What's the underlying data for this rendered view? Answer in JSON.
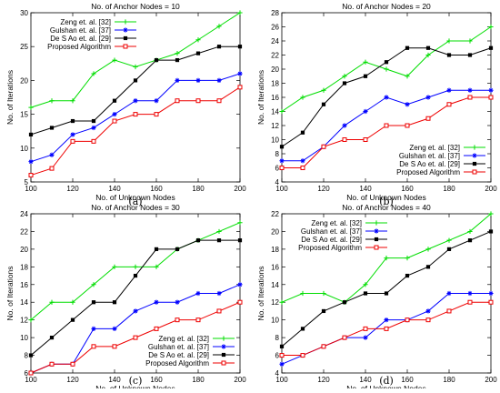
{
  "chart_data": [
    {
      "type": "line",
      "panel": "(a)",
      "title": "No. of Anchor Nodes = 10",
      "xlabel": "No. of Unknown Nodes",
      "ylabel": "No. of Iterations",
      "x": [
        100,
        110,
        120,
        130,
        140,
        150,
        160,
        170,
        180,
        190,
        200
      ],
      "xlim": [
        100,
        200
      ],
      "ylim": [
        5,
        30
      ],
      "xticks": [
        100,
        120,
        140,
        160,
        180,
        200
      ],
      "yticks": [
        5,
        10,
        15,
        20,
        25,
        30
      ],
      "legend": "top-left",
      "grid": false,
      "series": [
        {
          "name": "Zeng et. al. [32]",
          "color": "#00dd00",
          "marker": "plus",
          "values": [
            16,
            17,
            17,
            21,
            23,
            22,
            23,
            24,
            26,
            28,
            30
          ]
        },
        {
          "name": "Gulshan et. al. [37]",
          "color": "#0000ff",
          "marker": "star",
          "values": [
            8,
            9,
            12,
            13,
            15,
            17,
            17,
            20,
            20,
            20,
            21
          ]
        },
        {
          "name": "De S Ao et. al. [29]",
          "color": "#000000",
          "marker": "square-filled",
          "values": [
            12,
            13,
            14,
            14,
            17,
            20,
            23,
            23,
            24,
            25,
            25
          ]
        },
        {
          "name": "Proposed Algorithm",
          "color": "#ee0000",
          "marker": "square-open",
          "values": [
            6,
            7,
            11,
            11,
            14,
            15,
            15,
            17,
            17,
            17,
            19
          ]
        }
      ]
    },
    {
      "type": "line",
      "panel": "(b)",
      "title": "No. of Anchor Nodes = 20",
      "xlabel": "No. of Unknown Nodes",
      "ylabel": "No. of Iterations",
      "x": [
        100,
        110,
        120,
        130,
        140,
        150,
        160,
        170,
        180,
        190,
        200
      ],
      "xlim": [
        100,
        200
      ],
      "ylim": [
        4,
        28
      ],
      "xticks": [
        100,
        120,
        140,
        160,
        180,
        200
      ],
      "yticks": [
        4,
        6,
        8,
        10,
        12,
        14,
        16,
        18,
        20,
        22,
        24,
        26,
        28
      ],
      "legend": "bottom-right",
      "grid": false,
      "series": [
        {
          "name": "Zeng et. al. [32]",
          "color": "#00dd00",
          "marker": "plus",
          "values": [
            14,
            16,
            17,
            19,
            21,
            20,
            19,
            22,
            24,
            24,
            26
          ]
        },
        {
          "name": "Gulshan et. al. [37]",
          "color": "#0000ff",
          "marker": "star",
          "values": [
            7,
            7,
            9,
            12,
            14,
            16,
            15,
            16,
            17,
            17,
            17
          ]
        },
        {
          "name": "De S Ao et. al. [29]",
          "color": "#000000",
          "marker": "square-filled",
          "values": [
            9,
            11,
            15,
            18,
            19,
            21,
            23,
            23,
            22,
            22,
            23
          ]
        },
        {
          "name": "Proposed Algorithm",
          "color": "#ee0000",
          "marker": "square-open",
          "values": [
            6,
            6,
            9,
            10,
            10,
            12,
            12,
            13,
            15,
            16,
            16
          ]
        }
      ]
    },
    {
      "type": "line",
      "panel": "(c)",
      "title": "No. of Anchor Nodes = 30",
      "xlabel": "No. of Unknown Nodes",
      "ylabel": "No. of Iterations",
      "x": [
        100,
        110,
        120,
        130,
        140,
        150,
        160,
        170,
        180,
        190,
        200
      ],
      "xlim": [
        100,
        200
      ],
      "ylim": [
        6,
        24
      ],
      "xticks": [
        100,
        120,
        140,
        160,
        180,
        200
      ],
      "yticks": [
        6,
        8,
        10,
        12,
        14,
        16,
        18,
        20,
        22,
        24
      ],
      "legend": "bottom-right",
      "grid": false,
      "series": [
        {
          "name": "Zeng et. al. [32]",
          "color": "#00dd00",
          "marker": "plus",
          "values": [
            12,
            14,
            14,
            16,
            18,
            18,
            18,
            20,
            21,
            22,
            23
          ]
        },
        {
          "name": "Gulshan et. al. [37]",
          "color": "#0000ff",
          "marker": "star",
          "values": [
            6,
            7,
            7,
            11,
            11,
            13,
            14,
            14,
            15,
            15,
            16
          ]
        },
        {
          "name": "De S Ao et. al. [29]",
          "color": "#000000",
          "marker": "square-filled",
          "values": [
            8,
            10,
            12,
            14,
            14,
            17,
            20,
            20,
            21,
            21,
            21
          ]
        },
        {
          "name": "Proposed Algorithm",
          "color": "#ee0000",
          "marker": "square-open",
          "values": [
            6,
            7,
            7,
            9,
            9,
            10,
            11,
            12,
            12,
            13,
            14
          ]
        }
      ]
    },
    {
      "type": "line",
      "panel": "(d)",
      "title": "No. of Anchor Nodes = 40",
      "xlabel": "No. of Unknown Nodes",
      "ylabel": "No. of Iterations",
      "x": [
        100,
        110,
        120,
        130,
        140,
        150,
        160,
        170,
        180,
        190,
        200
      ],
      "xlim": [
        100,
        200
      ],
      "ylim": [
        4,
        22
      ],
      "xticks": [
        100,
        120,
        140,
        160,
        180,
        200
      ],
      "yticks": [
        4,
        6,
        8,
        10,
        12,
        14,
        16,
        18,
        20,
        22
      ],
      "legend": "top-left",
      "grid": false,
      "series": [
        {
          "name": "Zeng et. al. [32]",
          "color": "#00dd00",
          "marker": "plus",
          "values": [
            12,
            13,
            13,
            12,
            14,
            17,
            17,
            18,
            19,
            20,
            22
          ]
        },
        {
          "name": "Gulshan et. al. [37]",
          "color": "#0000ff",
          "marker": "star",
          "values": [
            5,
            6,
            7,
            8,
            8,
            10,
            10,
            11,
            13,
            13,
            13
          ]
        },
        {
          "name": "De S Ao et. al. [29]",
          "color": "#000000",
          "marker": "square-filled",
          "values": [
            7,
            9,
            11,
            12,
            13,
            13,
            15,
            16,
            18,
            19,
            20
          ]
        },
        {
          "name": "Proposed Algorithm",
          "color": "#ee0000",
          "marker": "square-open",
          "values": [
            6,
            6,
            7,
            8,
            9,
            9,
            10,
            10,
            11,
            12,
            12
          ]
        }
      ]
    }
  ]
}
